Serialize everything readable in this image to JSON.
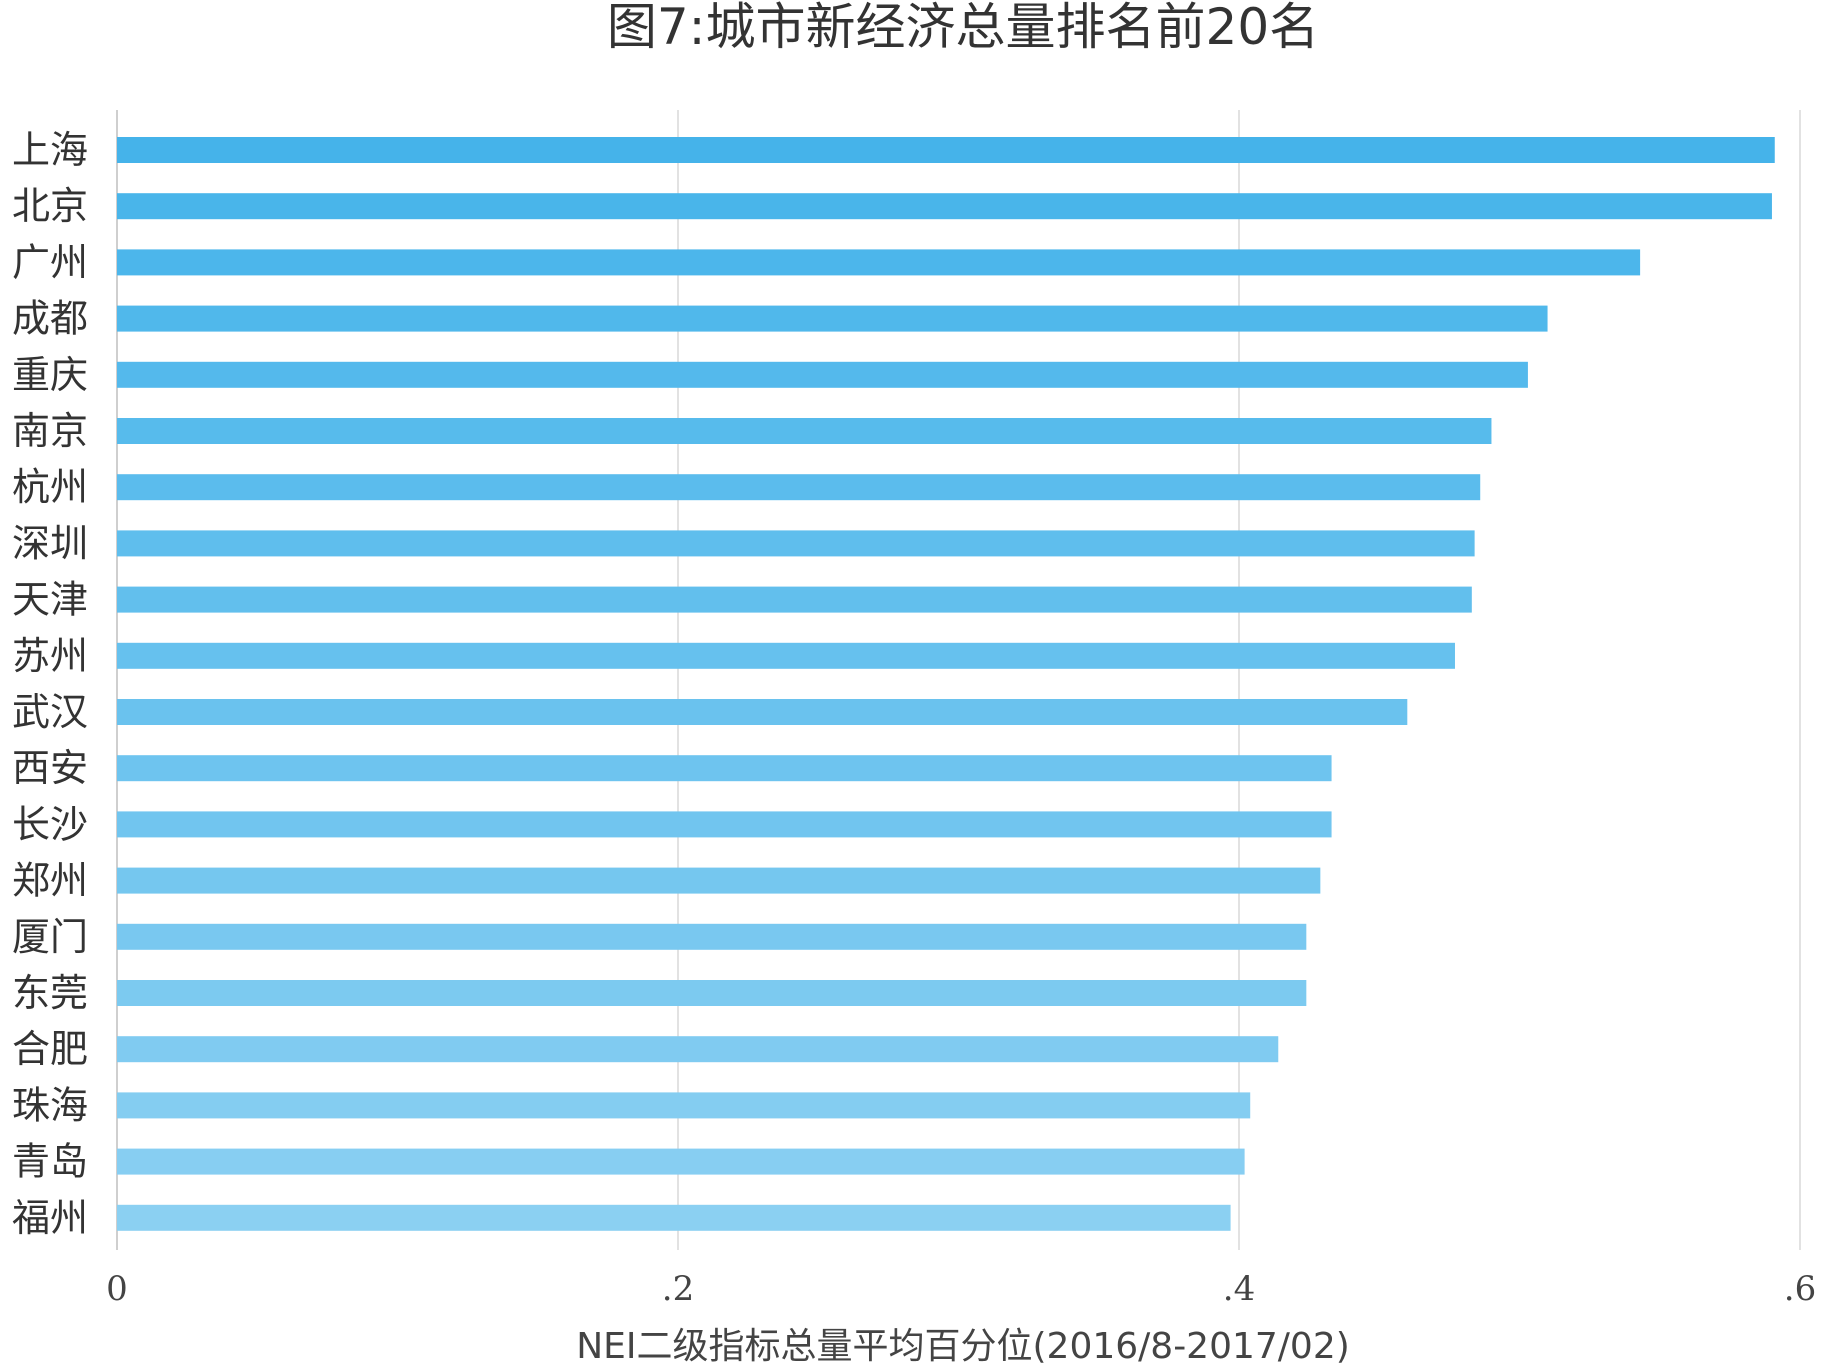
{
  "chart_data": {
    "type": "bar",
    "orientation": "horizontal",
    "title": "图7:城市新经济总量排名前20名",
    "xlabel": "NEI二级指标总量平均百分位(2016/8-2017/02)",
    "ylabel": "",
    "xlim": [
      0,
      0.6
    ],
    "xticks": [
      0,
      0.2,
      0.4,
      0.6
    ],
    "xtick_labels": [
      "0",
      ".2",
      ".4",
      ".6"
    ],
    "grid": "vertical",
    "legend": "none",
    "bar_color_top": "#45b3ea",
    "bar_color_bottom": "#8bd0f2",
    "categories": [
      "上海",
      "北京",
      "广州",
      "成都",
      "重庆",
      "南京",
      "杭州",
      "深圳",
      "天津",
      "苏州",
      "武汉",
      "西安",
      "长沙",
      "郑州",
      "厦门",
      "东莞",
      "合肥",
      "珠海",
      "青岛",
      "福州"
    ],
    "values": [
      0.591,
      0.59,
      0.543,
      0.51,
      0.503,
      0.49,
      0.486,
      0.484,
      0.483,
      0.477,
      0.46,
      0.433,
      0.433,
      0.429,
      0.424,
      0.424,
      0.414,
      0.404,
      0.402,
      0.397
    ]
  }
}
